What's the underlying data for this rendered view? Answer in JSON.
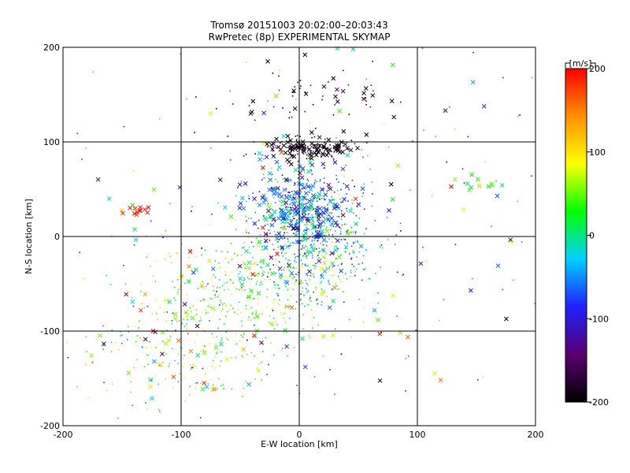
{
  "chart_data": {
    "type": "scatter",
    "title": "Tromsø 20151003 20:02:00–20:03:43",
    "subtitle": "RwPretec (8p) EXPERIMENTAL SKYMAP",
    "xlabel": "E-W location [km]",
    "ylabel": "N-S location [km]",
    "xlim": [
      -200,
      200
    ],
    "ylim": [
      -200,
      200
    ],
    "xticks": [
      "-200",
      "-100",
      "0",
      "100",
      "200"
    ],
    "yticks": [
      "-200",
      "-100",
      "0",
      "100",
      "200"
    ],
    "grid": true,
    "grid_lines": [
      -100,
      0,
      100
    ],
    "marker_styles": [
      "dot",
      "x"
    ],
    "colorbar": {
      "label": "[m/s]",
      "range": [
        -200,
        200
      ],
      "ticks": [
        "200",
        "100",
        "0",
        "-100",
        "-200"
      ],
      "colors": [
        "#000000",
        "#5a0070",
        "#2020ff",
        "#00d0ff",
        "#00ff00",
        "#ffff00",
        "#ff9000",
        "#ff0000"
      ]
    },
    "clusters": [
      {
        "cx": 10,
        "cy": 93,
        "sx": 18,
        "sy": 6,
        "vel": -190,
        "vsd": 15,
        "n": 160,
        "xfrac": 0.5
      },
      {
        "cx": 5,
        "cy": 27,
        "sx": 22,
        "sy": 22,
        "vel": -60,
        "vsd": 45,
        "n": 520,
        "xfrac": 0.35
      },
      {
        "cx": 10,
        "cy": -20,
        "sx": 25,
        "sy": 30,
        "vel": -20,
        "vsd": 55,
        "n": 380,
        "xfrac": 0.1
      },
      {
        "cx": -50,
        "cy": -60,
        "sx": 40,
        "sy": 30,
        "vel": 50,
        "vsd": 45,
        "n": 320,
        "xfrac": 0.08
      },
      {
        "cx": -100,
        "cy": -120,
        "sx": 40,
        "sy": 35,
        "vel": 60,
        "vsd": 70,
        "n": 220,
        "xfrac": 0.15
      },
      {
        "cx": 20,
        "cy": 150,
        "sx": 40,
        "sy": 15,
        "vel": -180,
        "vsd": 30,
        "n": 60,
        "xfrac": 0.4
      },
      {
        "cx": 0,
        "cy": 0,
        "sx": 110,
        "sy": 110,
        "vel": 0,
        "vsd": 140,
        "n": 300,
        "xfrac": 0.35
      },
      {
        "cx": -135,
        "cy": 28,
        "sx": 6,
        "sy": 3,
        "vel": 190,
        "vsd": 10,
        "n": 12,
        "xfrac": 1.0
      },
      {
        "cx": 150,
        "cy": 50,
        "sx": 25,
        "sy": 12,
        "vel": 20,
        "vsd": 40,
        "n": 18,
        "xfrac": 0.7
      }
    ]
  }
}
